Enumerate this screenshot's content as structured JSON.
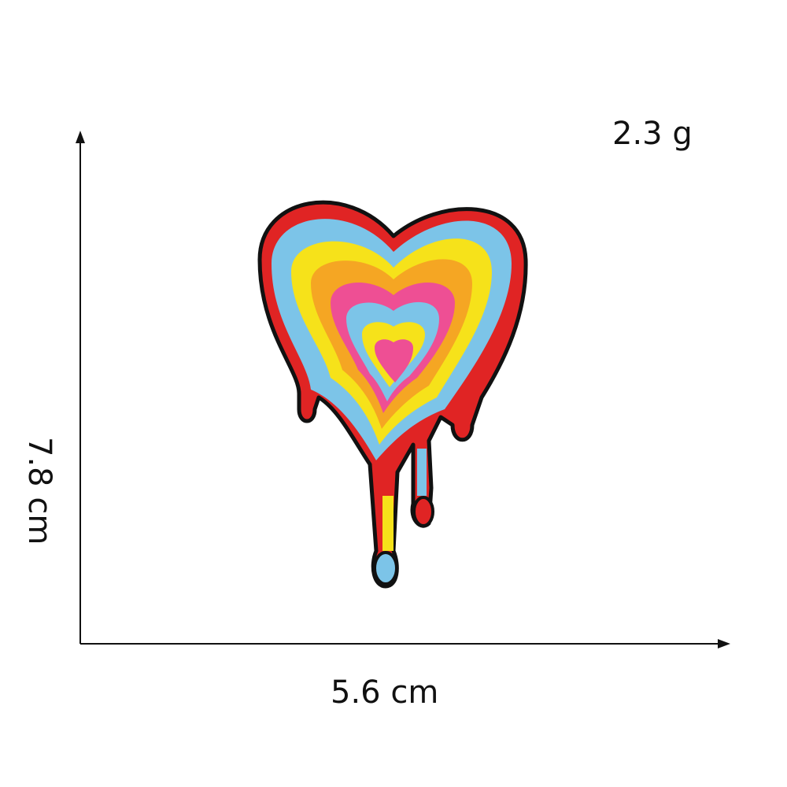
{
  "dimensions": {
    "width_label": "5.6 cm",
    "height_label": "7.8 cm",
    "weight_label": "2.3 g"
  },
  "product": {
    "image_description": "melting-rainbow-heart-patch",
    "colors": [
      "#e02424",
      "#7cc4e8",
      "#f6e21a",
      "#f5a623",
      "#ee4f94"
    ]
  }
}
